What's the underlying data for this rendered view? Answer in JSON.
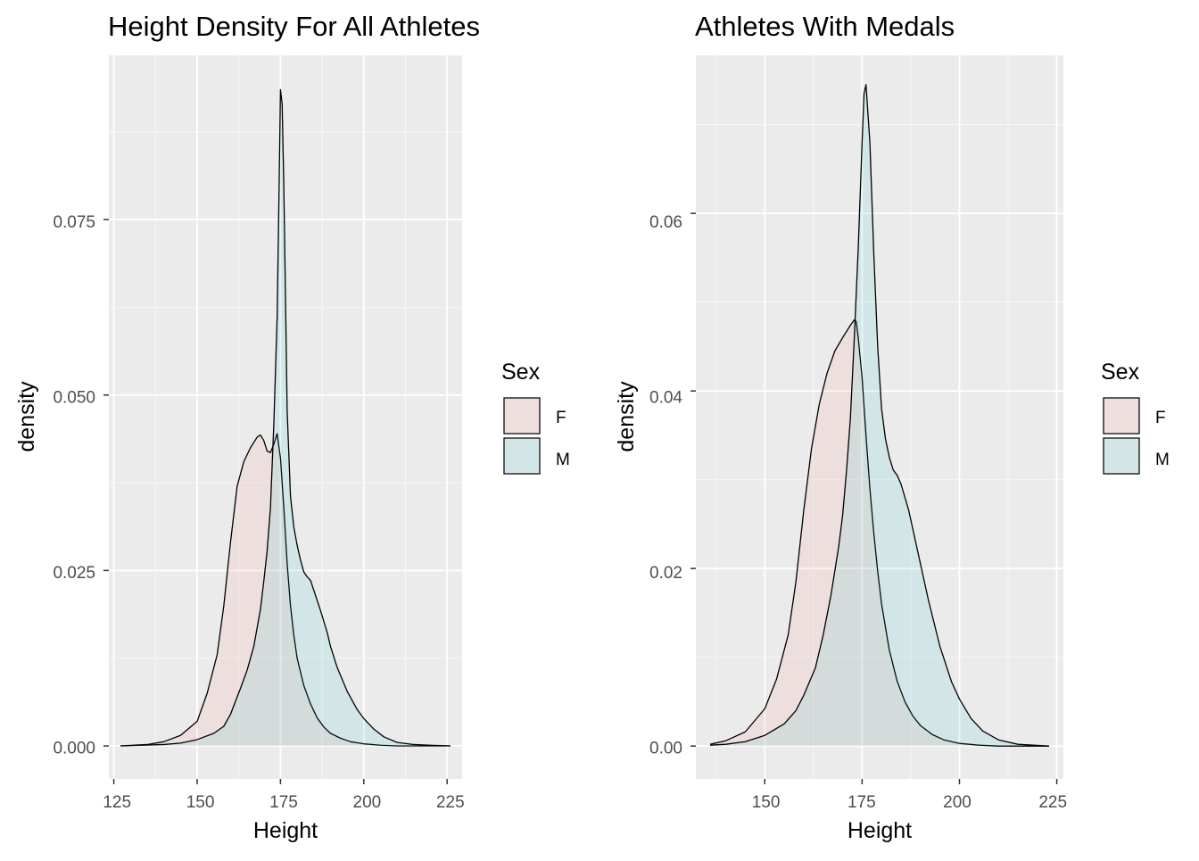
{
  "chart_data": [
    {
      "type": "area",
      "title": "Height Density For All Athletes",
      "xlabel": "Height",
      "ylabel": "density",
      "xlim": [
        123.5,
        229.5
      ],
      "ylim": [
        -0.0047,
        0.0984
      ],
      "x_ticks": [
        125,
        150,
        175,
        200,
        225
      ],
      "x_tick_labels": [
        "125",
        "150",
        "175",
        "200",
        "225"
      ],
      "y_ticks": [
        0,
        0.025,
        0.05,
        0.075
      ],
      "y_tick_labels": [
        "0.000",
        "0.025",
        "0.050",
        "0.075"
      ],
      "grid": true,
      "legend": {
        "title": "Sex",
        "position": "right",
        "entries": [
          "F",
          "M"
        ]
      },
      "series": [
        {
          "name": "F",
          "fill": "#f8766d",
          "x": [
            127,
            135,
            140,
            145,
            150,
            153,
            156,
            158,
            160,
            162,
            164,
            166,
            168,
            169,
            170,
            171,
            172,
            173,
            174,
            175,
            176,
            177,
            178,
            179,
            180,
            182,
            184,
            186,
            188,
            190,
            193,
            196,
            200,
            205,
            210,
            215,
            220,
            226
          ],
          "y": [
            0,
            0.0002,
            0.0006,
            0.0015,
            0.0035,
            0.0075,
            0.013,
            0.02,
            0.029,
            0.037,
            0.0405,
            0.0425,
            0.044,
            0.0443,
            0.0435,
            0.042,
            0.0418,
            0.043,
            0.0445,
            0.041,
            0.034,
            0.026,
            0.02,
            0.0158,
            0.0125,
            0.0086,
            0.006,
            0.004,
            0.0027,
            0.0018,
            0.0011,
            0.0006,
            0.0003,
            0.0001,
            0,
            0,
            0,
            0
          ]
        },
        {
          "name": "M",
          "fill": "#00bfc4",
          "x": [
            127,
            140,
            145,
            150,
            155,
            158,
            160,
            163,
            165,
            167,
            169,
            170,
            171,
            172,
            173,
            174,
            174.6,
            175,
            175.5,
            176,
            176.5,
            177,
            178,
            179,
            180,
            181,
            182,
            183,
            184,
            185,
            187,
            189,
            190,
            192,
            195,
            198,
            200,
            203,
            206,
            210,
            215,
            220,
            226
          ],
          "y": [
            0,
            0.0002,
            0.0004,
            0.0009,
            0.0018,
            0.0028,
            0.0045,
            0.0082,
            0.0108,
            0.0142,
            0.0195,
            0.0235,
            0.0278,
            0.034,
            0.0458,
            0.061,
            0.08,
            0.0935,
            0.0915,
            0.08,
            0.064,
            0.0478,
            0.0356,
            0.0312,
            0.0286,
            0.0265,
            0.0248,
            0.0241,
            0.0236,
            0.0222,
            0.0193,
            0.0162,
            0.0142,
            0.0112,
            0.0078,
            0.0052,
            0.0039,
            0.0024,
            0.0013,
            0.0005,
            0.0002,
            0.0001,
            0
          ]
        }
      ]
    },
    {
      "type": "area",
      "title": "Athletes With Medals",
      "xlabel": "Height",
      "ylabel": "density",
      "xlim": [
        132.3,
        226.7
      ],
      "ylim": [
        -0.0037,
        0.0778
      ],
      "x_ticks": [
        150,
        175,
        200,
        225
      ],
      "x_tick_labels": [
        "150",
        "175",
        "200",
        "225"
      ],
      "y_ticks": [
        0,
        0.02,
        0.04,
        0.06
      ],
      "y_tick_labels": [
        "0.00",
        "0.02",
        "0.04",
        "0.06"
      ],
      "grid": true,
      "legend": {
        "title": "Sex",
        "position": "right",
        "entries": [
          "F",
          "M"
        ]
      },
      "series": [
        {
          "name": "F",
          "fill": "#f8766d",
          "x": [
            136,
            140,
            145,
            150,
            153,
            156,
            158,
            160,
            162,
            164,
            166,
            168,
            170,
            172,
            173,
            173.5,
            174,
            175,
            176,
            177,
            178,
            179,
            180,
            182,
            184,
            186,
            188,
            190,
            193,
            196,
            200,
            205,
            210,
            215,
            223
          ],
          "y": [
            0.0002,
            0.0006,
            0.0016,
            0.0042,
            0.0075,
            0.0125,
            0.0185,
            0.0265,
            0.0335,
            0.0385,
            0.042,
            0.0445,
            0.046,
            0.0474,
            0.048,
            0.0478,
            0.046,
            0.0415,
            0.035,
            0.029,
            0.024,
            0.0197,
            0.016,
            0.0108,
            0.0073,
            0.005,
            0.0034,
            0.0023,
            0.0013,
            0.0007,
            0.0003,
            0.0001,
            0,
            0,
            0
          ]
        },
        {
          "name": "M",
          "fill": "#00bfc4",
          "x": [
            136,
            140,
            145,
            150,
            155,
            158,
            160,
            163,
            165,
            167,
            169,
            170,
            171,
            172,
            173,
            174,
            175,
            175.5,
            176,
            177,
            178,
            179,
            180,
            181,
            182,
            183,
            184,
            185,
            187,
            189,
            190,
            192,
            195,
            198,
            200,
            203,
            206,
            210,
            215,
            223
          ],
          "y": [
            0.0001,
            0.0002,
            0.0005,
            0.0012,
            0.0025,
            0.004,
            0.0057,
            0.0088,
            0.0125,
            0.017,
            0.0225,
            0.026,
            0.031,
            0.037,
            0.046,
            0.056,
            0.068,
            0.0735,
            0.0745,
            0.068,
            0.0555,
            0.045,
            0.038,
            0.0346,
            0.0325,
            0.0311,
            0.0305,
            0.0295,
            0.0265,
            0.0225,
            0.0205,
            0.0165,
            0.0112,
            0.0072,
            0.0053,
            0.0031,
            0.0017,
            0.0007,
            0.0002,
            0
          ]
        }
      ]
    }
  ]
}
